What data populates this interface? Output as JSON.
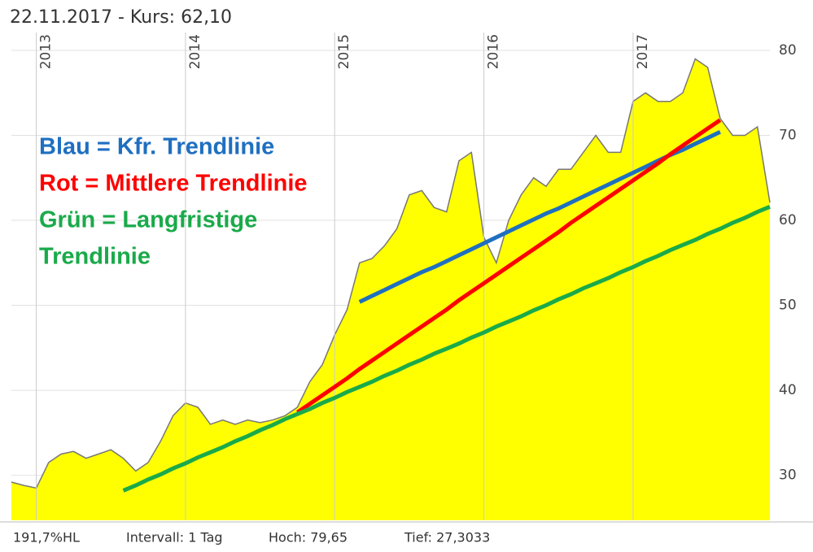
{
  "chart_data": {
    "type": "area",
    "title": "22.11.2017  -  Kurs: 62,10",
    "footer": [
      "191,7%HL",
      "Intervall: 1 Tag",
      "Hoch:  79,65",
      "Tief: 27,3033"
    ],
    "annotations": [
      {
        "text": "Blau = Kfr. Trendlinie",
        "color": "#1f6fc0"
      },
      {
        "text": "Rot = Mittlere Trendlinie",
        "color": "#ff0000"
      },
      {
        "text": "Grün = Langfristige",
        "color": "#1aaa4a"
      },
      {
        "text": "Trendlinie",
        "color": "#1aaa4a"
      }
    ],
    "categories": [
      null,
      null,
      "2013",
      null,
      null,
      null,
      null,
      null,
      null,
      null,
      null,
      null,
      null,
      null,
      "2014",
      null,
      null,
      null,
      null,
      null,
      null,
      null,
      null,
      null,
      null,
      null,
      "2015",
      null,
      null,
      null,
      null,
      null,
      null,
      null,
      null,
      null,
      null,
      null,
      "2016",
      null,
      null,
      null,
      null,
      null,
      null,
      null,
      null,
      null,
      null,
      null,
      "2017",
      null,
      null,
      null,
      null,
      null,
      null,
      null,
      null,
      null,
      null,
      null
    ],
    "values": [
      29.2,
      28.8,
      28.5,
      31.5,
      32.5,
      32.8,
      32,
      32.5,
      33,
      32,
      30.5,
      31.5,
      34,
      37,
      38.5,
      38,
      36,
      36.5,
      36,
      36.5,
      36.2,
      36.5,
      37,
      38,
      41,
      43,
      46.5,
      49.5,
      55,
      55.5,
      57,
      59,
      63,
      63.5,
      61.5,
      61,
      67,
      68,
      58,
      55,
      60,
      63,
      65,
      64,
      66,
      66,
      68,
      70,
      68,
      68,
      74,
      75,
      74,
      74,
      75,
      79,
      78,
      72,
      70,
      70,
      71,
      62.1
    ],
    "color": "#ffff00",
    "line_color": "#777777",
    "trendlines": [
      {
        "color": "#1f6fc0",
        "values": [
          null,
          null,
          null,
          null,
          null,
          null,
          null,
          null,
          null,
          null,
          null,
          null,
          null,
          null,
          null,
          null,
          null,
          null,
          null,
          null,
          null,
          null,
          null,
          null,
          null,
          null,
          null,
          null,
          50.4,
          51.1,
          51.8,
          52.5,
          53.2,
          53.9,
          54.5,
          55.2,
          55.9,
          56.6,
          57.3,
          58.0,
          58.7,
          59.4,
          60.1,
          60.8,
          61.4,
          62.1,
          62.8,
          63.5,
          64.2,
          64.9,
          65.6,
          66.3,
          67.0,
          67.7,
          68.3,
          69.0,
          69.7,
          70.4,
          null,
          null,
          null,
          null
        ]
      },
      {
        "color": "#ff0000",
        "values": [
          null,
          null,
          null,
          null,
          null,
          null,
          null,
          null,
          null,
          null,
          null,
          null,
          null,
          null,
          null,
          null,
          null,
          null,
          null,
          null,
          null,
          null,
          null,
          37.4,
          38.4,
          39.4,
          40.4,
          41.4,
          42.5,
          43.5,
          44.5,
          45.5,
          46.5,
          47.5,
          48.5,
          49.5,
          50.6,
          51.6,
          52.6,
          53.6,
          54.6,
          55.6,
          56.6,
          57.6,
          58.6,
          59.7,
          60.7,
          61.7,
          62.7,
          63.7,
          64.7,
          65.7,
          66.7,
          67.8,
          68.8,
          69.8,
          70.8,
          71.8,
          null,
          null,
          null,
          null
        ]
      },
      {
        "color": "#1aaa4a",
        "values": [
          null,
          null,
          null,
          null,
          null,
          null,
          null,
          null,
          null,
          28.2,
          28.8,
          29.5,
          30.1,
          30.8,
          31.4,
          32.1,
          32.7,
          33.3,
          34.0,
          34.6,
          35.3,
          35.9,
          36.6,
          37.2,
          37.8,
          38.5,
          39.1,
          39.8,
          40.4,
          41.0,
          41.7,
          42.3,
          43.0,
          43.6,
          44.3,
          44.9,
          45.5,
          46.2,
          46.8,
          47.5,
          48.1,
          48.7,
          49.4,
          50.0,
          50.7,
          51.3,
          52.0,
          52.6,
          53.2,
          53.9,
          54.5,
          55.2,
          55.8,
          56.5,
          57.1,
          57.7,
          58.4,
          59.0,
          59.7,
          60.3,
          61.0,
          61.6
        ]
      }
    ],
    "ylim": [
      24.7,
      82.1
    ],
    "yticks": [
      30,
      40,
      50,
      60,
      70,
      80
    ],
    "grid": true
  }
}
